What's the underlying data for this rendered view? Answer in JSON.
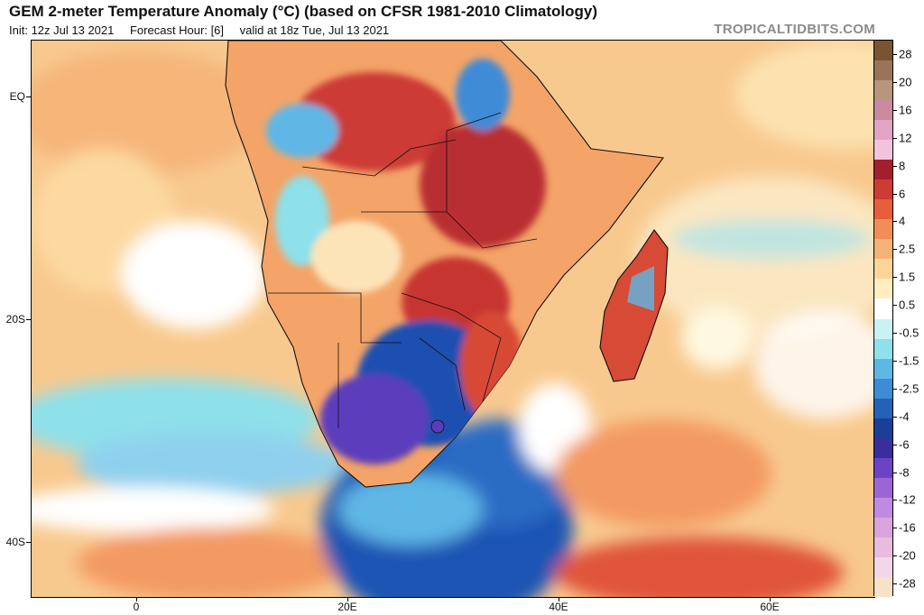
{
  "header": {
    "title": "GEM 2-meter Temperature Anomaly (°C) (based on CFSR 1981-2010 Climatology)",
    "init": "Init: 12z Jul 13 2021",
    "forecast_hour": "Forecast Hour: [6]",
    "valid": "valid at 18z Tue, Jul 13 2021",
    "brand": "TROPICALTIDBITS.COM"
  },
  "axes": {
    "lat_labels": [
      "EQ",
      "20S",
      "40S"
    ],
    "lon_labels": [
      "0",
      "20E",
      "40E",
      "60E"
    ]
  },
  "colorbar": {
    "labels": [
      "28",
      "20",
      "16",
      "12",
      "8",
      "6",
      "4",
      "2.5",
      "1.5",
      "0.5",
      "-0.5",
      "-1.5",
      "-2.5",
      "-4",
      "-6",
      "-8",
      "-12",
      "-16",
      "-20",
      "-28"
    ],
    "colors": [
      "#7a5432",
      "#9a7458",
      "#b8957e",
      "#c98aa0",
      "#e0a4c4",
      "#f2c4dc",
      "#a31f2e",
      "#cc3b34",
      "#e65e3c",
      "#f28d58",
      "#f7b377",
      "#fcd698",
      "#ffeebf",
      "#ffffff",
      "#c8f2f4",
      "#8ee0ea",
      "#5fb7e6",
      "#3f8bd6",
      "#2362b8",
      "#1b3f99",
      "#3a2d9c",
      "#6a44c4",
      "#9a66d4",
      "#c08ae0",
      "#d9a4dc",
      "#e8bcde",
      "#f3d6e8",
      "#f7e2c8"
    ]
  }
}
